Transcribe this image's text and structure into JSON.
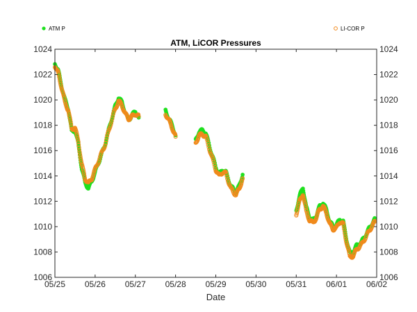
{
  "chart_data": {
    "type": "scatter",
    "title": "ATM, LiCOR Pressures",
    "xlabel": "Date",
    "ylabel": "",
    "x_range": [
      "2015-05-25",
      "2015-06-02"
    ],
    "ylim": [
      1006,
      1024
    ],
    "y_ticks": [
      1006,
      1008,
      1010,
      1012,
      1014,
      1016,
      1018,
      1020,
      1022,
      1024
    ],
    "x_tick_labels": [
      "05/25",
      "05/26",
      "05/27",
      "05/28",
      "05/29",
      "05/30",
      "05/31",
      "06/01",
      "06/02"
    ],
    "grid": false,
    "legend": [
      "top-left",
      "top-right"
    ],
    "series": [
      {
        "name": "ATM P",
        "marker": "filled-circle",
        "color": "#1ee01e",
        "segments": [
          [
            [
              "2015-05-25 00:00",
              1022.9
            ],
            [
              "2015-05-25 02:00",
              1022.3
            ],
            [
              "2015-05-25 04:00",
              1021.1
            ],
            [
              "2015-05-25 06:00",
              1020.0
            ],
            [
              "2015-05-25 08:00",
              1019.3
            ],
            [
              "2015-05-25 10:00",
              1017.5
            ],
            [
              "2015-05-25 12:00",
              1017.6
            ],
            [
              "2015-05-25 14:00",
              1016.5
            ],
            [
              "2015-05-25 16:00",
              1014.6
            ],
            [
              "2015-05-25 18:00",
              1013.5
            ],
            [
              "2015-05-25 20:00",
              1013.0
            ],
            [
              "2015-05-25 22:00",
              1013.6
            ],
            [
              "2015-05-26 00:00",
              1014.3
            ],
            [
              "2015-05-26 03:00",
              1015.4
            ],
            [
              "2015-05-26 06:00",
              1016.5
            ],
            [
              "2015-05-26 09:00",
              1018.1
            ],
            [
              "2015-05-26 12:00",
              1019.5
            ],
            [
              "2015-05-26 14:00",
              1020.2
            ],
            [
              "2015-05-26 16:00",
              1019.8
            ],
            [
              "2015-05-26 18:00",
              1019.0
            ],
            [
              "2015-05-26 20:00",
              1018.4
            ],
            [
              "2015-05-26 22:00",
              1018.8
            ],
            [
              "2015-05-27 00:00",
              1019.1
            ],
            [
              "2015-05-27 02:00",
              1018.6
            ]
          ],
          [
            [
              "2015-05-27 18:00",
              1019.2
            ],
            [
              "2015-05-27 20:00",
              1018.5
            ],
            [
              "2015-05-27 22:00",
              1018.0
            ],
            [
              "2015-05-28 00:00",
              1017.2
            ]
          ],
          [
            [
              "2015-05-28 12:00",
              1016.8
            ],
            [
              "2015-05-28 14:00",
              1017.5
            ],
            [
              "2015-05-28 16:00",
              1017.6
            ],
            [
              "2015-05-28 18:00",
              1017.4
            ],
            [
              "2015-05-28 21:00",
              1016.0
            ],
            [
              "2015-05-29 00:00",
              1014.7
            ],
            [
              "2015-05-29 02:00",
              1014.1
            ],
            [
              "2015-05-29 04:00",
              1014.5
            ],
            [
              "2015-05-29 06:00",
              1014.3
            ],
            [
              "2015-05-29 09:00",
              1013.2
            ],
            [
              "2015-05-29 12:00",
              1012.7
            ],
            [
              "2015-05-29 14:00",
              1013.2
            ],
            [
              "2015-05-29 16:00",
              1014.1
            ]
          ],
          [
            [
              "2015-05-31 00:00",
              1011.3
            ],
            [
              "2015-05-31 02:00",
              1012.4
            ],
            [
              "2015-05-31 04:00",
              1013.1
            ],
            [
              "2015-05-31 06:00",
              1011.5
            ],
            [
              "2015-05-31 08:00",
              1010.7
            ],
            [
              "2015-05-31 10:00",
              1010.5
            ],
            [
              "2015-05-31 12:00",
              1010.9
            ],
            [
              "2015-05-31 14:00",
              1011.6
            ],
            [
              "2015-05-31 16:00",
              1011.9
            ],
            [
              "2015-05-31 18:00",
              1011.3
            ],
            [
              "2015-05-31 20:00",
              1010.4
            ],
            [
              "2015-05-31 22:00",
              1010.0
            ],
            [
              "2015-06-01 00:00",
              1010.1
            ],
            [
              "2015-06-01 02:00",
              1010.6
            ],
            [
              "2015-06-01 04:00",
              1010.4
            ],
            [
              "2015-06-01 06:00",
              1009.0
            ],
            [
              "2015-06-01 08:00",
              1007.9
            ],
            [
              "2015-06-01 10:00",
              1008.0
            ],
            [
              "2015-06-01 12:00",
              1008.5
            ],
            [
              "2015-06-01 15:00",
              1008.8
            ],
            [
              "2015-06-01 18:00",
              1009.5
            ],
            [
              "2015-06-01 21:00",
              1010.2
            ],
            [
              "2015-06-01 23:00",
              1010.6
            ]
          ]
        ]
      },
      {
        "name": "LI-COR P",
        "marker": "open-circle",
        "color": "#f08a1c",
        "segments": [
          [
            [
              "2015-05-25 00:00",
              1022.7
            ],
            [
              "2015-05-25 02:00",
              1022.1
            ],
            [
              "2015-05-25 04:00",
              1021.0
            ],
            [
              "2015-05-25 06:00",
              1019.8
            ],
            [
              "2015-05-25 08:00",
              1019.2
            ],
            [
              "2015-05-25 10:00",
              1017.7
            ],
            [
              "2015-05-25 12:00",
              1017.8
            ],
            [
              "2015-05-25 14:00",
              1016.7
            ],
            [
              "2015-05-25 16:00",
              1014.9
            ],
            [
              "2015-05-25 18:00",
              1013.8
            ],
            [
              "2015-05-25 20:00",
              1013.4
            ],
            [
              "2015-05-25 22:00",
              1013.8
            ],
            [
              "2015-05-26 00:00",
              1014.5
            ],
            [
              "2015-05-26 03:00",
              1015.5
            ],
            [
              "2015-05-26 06:00",
              1016.5
            ],
            [
              "2015-05-26 09:00",
              1018.0
            ],
            [
              "2015-05-26 12:00",
              1019.3
            ],
            [
              "2015-05-26 14:00",
              1019.9
            ],
            [
              "2015-05-26 16:00",
              1019.6
            ],
            [
              "2015-05-26 18:00",
              1018.9
            ],
            [
              "2015-05-26 20:00",
              1018.5
            ],
            [
              "2015-05-26 22:00",
              1018.7
            ],
            [
              "2015-05-27 00:00",
              1018.9
            ],
            [
              "2015-05-27 02:00",
              1018.7
            ]
          ],
          [
            [
              "2015-05-27 18:00",
              1018.9
            ],
            [
              "2015-05-27 20:00",
              1018.4
            ],
            [
              "2015-05-27 22:00",
              1017.8
            ],
            [
              "2015-05-28 00:00",
              1017.1
            ]
          ],
          [
            [
              "2015-05-28 12:00",
              1016.6
            ],
            [
              "2015-05-28 14:00",
              1017.2
            ],
            [
              "2015-05-28 16:00",
              1017.3
            ],
            [
              "2015-05-28 18:00",
              1017.1
            ],
            [
              "2015-05-28 21:00",
              1015.8
            ],
            [
              "2015-05-29 00:00",
              1014.5
            ],
            [
              "2015-05-29 02:00",
              1014.0
            ],
            [
              "2015-05-29 04:00",
              1014.3
            ],
            [
              "2015-05-29 06:00",
              1014.2
            ],
            [
              "2015-05-29 09:00",
              1013.0
            ],
            [
              "2015-05-29 12:00",
              1012.5
            ],
            [
              "2015-05-29 14:00",
              1013.0
            ],
            [
              "2015-05-29 16:00",
              1013.8
            ]
          ],
          [
            [
              "2015-05-31 00:00",
              1011.0
            ],
            [
              "2015-05-31 02:00",
              1012.0
            ],
            [
              "2015-05-31 04:00",
              1012.6
            ],
            [
              "2015-05-31 06:00",
              1011.2
            ],
            [
              "2015-05-31 08:00",
              1010.5
            ],
            [
              "2015-05-31 10:00",
              1010.3
            ],
            [
              "2015-05-31 12:00",
              1010.7
            ],
            [
              "2015-05-31 14:00",
              1011.4
            ],
            [
              "2015-05-31 16:00",
              1011.6
            ],
            [
              "2015-05-31 18:00",
              1011.1
            ],
            [
              "2015-05-31 20:00",
              1010.2
            ],
            [
              "2015-05-31 22:00",
              1009.8
            ],
            [
              "2015-06-01 00:00",
              1009.9
            ],
            [
              "2015-06-01 02:00",
              1010.4
            ],
            [
              "2015-06-01 04:00",
              1010.2
            ],
            [
              "2015-06-01 06:00",
              1008.8
            ],
            [
              "2015-06-01 08:00",
              1007.6
            ],
            [
              "2015-06-01 10:00",
              1007.7
            ],
            [
              "2015-06-01 12:00",
              1008.2
            ],
            [
              "2015-06-01 15:00",
              1008.6
            ],
            [
              "2015-06-01 18:00",
              1009.3
            ],
            [
              "2015-06-01 21:00",
              1010.0
            ],
            [
              "2015-06-01 23:00",
              1010.4
            ]
          ]
        ]
      }
    ]
  }
}
